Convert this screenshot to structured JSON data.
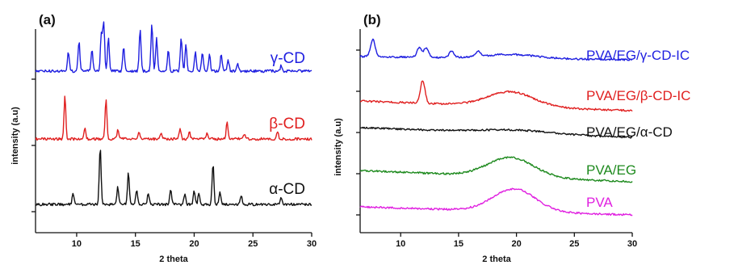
{
  "figure": {
    "panels": [
      {
        "label": "(a)",
        "xlabel": "2 theta",
        "ylabel": "intensity (a.u)",
        "xticks": [
          "10",
          "15",
          "20",
          "25",
          "30"
        ],
        "traces": [
          {
            "name": "γ-CD",
            "color": "#1f1fe0"
          },
          {
            "name": "β-CD",
            "color": "#e01f1f"
          },
          {
            "name": "α-CD",
            "color": "#111111"
          }
        ]
      },
      {
        "label": "(b)",
        "xlabel": "2 theta",
        "ylabel": "intensity (a.u)",
        "xticks": [
          "10",
          "15",
          "20",
          "25",
          "30"
        ],
        "traces": [
          {
            "name": "PVA/EG/γ-CD-IC",
            "color": "#1f1fe0"
          },
          {
            "name": "PVA/EG/β-CD-IC",
            "color": "#e01f1f"
          },
          {
            "name": "PVA/EG/α-CD",
            "color": "#111111"
          },
          {
            "name": "PVA/EG",
            "color": "#1e8a1e"
          },
          {
            "name": "PVA",
            "color": "#e020e0"
          }
        ]
      }
    ]
  },
  "chart_data": [
    {
      "type": "line",
      "xlabel": "2 theta",
      "ylabel": "intensity (a.u)",
      "xlim": [
        6.5,
        30
      ],
      "xticks": [
        10,
        15,
        20,
        25,
        30
      ],
      "grid": false,
      "series": [
        {
          "name": "γ-CD",
          "color": "#1f1fe0",
          "peaks": [
            [
              9.3,
              0.35
            ],
            [
              10.2,
              0.55
            ],
            [
              11.3,
              0.4
            ],
            [
              12.1,
              0.7
            ],
            [
              12.3,
              0.9
            ],
            [
              12.7,
              0.6
            ],
            [
              14,
              0.45
            ],
            [
              15.4,
              0.75
            ],
            [
              16.4,
              0.85
            ],
            [
              16.8,
              0.6
            ],
            [
              17.8,
              0.4
            ],
            [
              18.9,
              0.6
            ],
            [
              19.3,
              0.5
            ],
            [
              20.1,
              0.35
            ],
            [
              20.7,
              0.35
            ],
            [
              21.3,
              0.3
            ],
            [
              22.3,
              0.3
            ],
            [
              22.9,
              0.2
            ],
            [
              23.7,
              0.15
            ],
            [
              27.4,
              0.1
            ]
          ]
        },
        {
          "name": "β-CD",
          "color": "#e01f1f",
          "peaks": [
            [
              9.0,
              0.75
            ],
            [
              10.7,
              0.2
            ],
            [
              12.5,
              0.7
            ],
            [
              13.5,
              0.15
            ],
            [
              15.3,
              0.12
            ],
            [
              17.2,
              0.12
            ],
            [
              18.8,
              0.18
            ],
            [
              19.6,
              0.12
            ],
            [
              21.1,
              0.12
            ],
            [
              22.8,
              0.3
            ],
            [
              24.3,
              0.1
            ],
            [
              27.1,
              0.12
            ]
          ]
        },
        {
          "name": "α-CD",
          "color": "#111111",
          "peaks": [
            [
              9.7,
              0.2
            ],
            [
              12.0,
              1.0
            ],
            [
              13.5,
              0.3
            ],
            [
              14.4,
              0.55
            ],
            [
              15.1,
              0.25
            ],
            [
              16.1,
              0.2
            ],
            [
              18.0,
              0.25
            ],
            [
              19.2,
              0.18
            ],
            [
              20.0,
              0.25
            ],
            [
              20.4,
              0.2
            ],
            [
              21.6,
              0.7
            ],
            [
              22.2,
              0.2
            ],
            [
              24.0,
              0.15
            ],
            [
              27.4,
              0.12
            ]
          ]
        }
      ]
    },
    {
      "type": "line",
      "xlabel": "2 theta",
      "ylabel": "intensity (a.u)",
      "xlim": [
        6.5,
        30
      ],
      "xticks": [
        10,
        15,
        20,
        25,
        30
      ],
      "grid": false,
      "series": [
        {
          "name": "PVA/EG/γ-CD-IC",
          "color": "#1f1fe0",
          "start": 0.1,
          "end": 0.0,
          "hump": {
            "center": 19.5,
            "height": 0.12,
            "width": 3.2
          },
          "peaks": [
            [
              7.6,
              0.55
            ],
            [
              11.6,
              0.3
            ],
            [
              12.2,
              0.3
            ],
            [
              14.4,
              0.2
            ],
            [
              16.7,
              0.15
            ]
          ]
        },
        {
          "name": "PVA/EG/β-CD-IC",
          "color": "#e01f1f",
          "start": 0.05,
          "end": -0.25,
          "hump": {
            "center": 19.5,
            "height": 0.45,
            "width": 2.8
          },
          "peaks": [
            [
              11.9,
              0.7
            ]
          ]
        },
        {
          "name": "PVA/EG/α-CD",
          "color": "#111111",
          "start": 0.3,
          "end": 0.0,
          "hump": {
            "center": 20.0,
            "height": 0.1,
            "width": 4.0
          },
          "peaks": []
        },
        {
          "name": "PVA/EG",
          "color": "#1e8a1e",
          "start": 0.05,
          "end": -0.3,
          "hump": {
            "center": 19.5,
            "height": 0.6,
            "width": 2.8
          },
          "peaks": []
        },
        {
          "name": "PVA",
          "color": "#e020e0",
          "start": 0.0,
          "end": -0.25,
          "hump": {
            "center": 19.8,
            "height": 0.7,
            "width": 2.6
          },
          "peaks": []
        }
      ]
    }
  ]
}
